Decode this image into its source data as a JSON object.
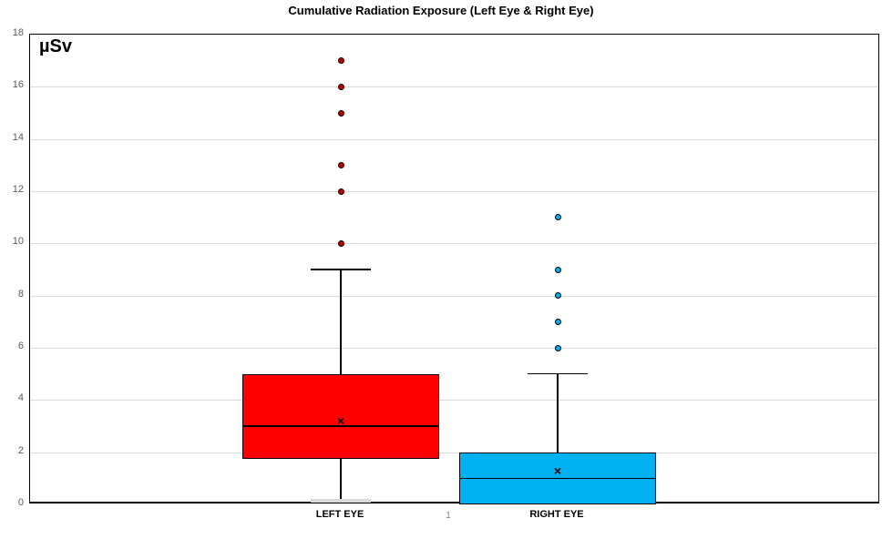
{
  "chart_data": {
    "type": "boxplot",
    "title": "Cumulative Radiation Exposure (Left Eye & Right Eye)",
    "unit_label": "µSv",
    "axis_group_label": "1",
    "ylim": [
      0,
      18
    ],
    "ytick_step": 2,
    "yticks": [
      0,
      2,
      4,
      6,
      8,
      10,
      12,
      14,
      16,
      18
    ],
    "grid": true,
    "gridline_color": "#d9d9d9",
    "tick_label_color": "#595959",
    "mean_marker_symbol": "×",
    "series": [
      {
        "name": "LEFT EYE",
        "box_color": "#ff0000",
        "outlier_color": "#c00000",
        "whisker_low": 0,
        "q1": 1.75,
        "median": 3,
        "q3": 5,
        "whisker_high": 9,
        "mean": 3.2,
        "outliers": [
          10,
          12,
          13,
          15,
          16,
          17
        ]
      },
      {
        "name": "RIGHT EYE",
        "box_color": "#00b0f0",
        "outlier_color": "#00b0f0",
        "whisker_low": 0,
        "q1": 0,
        "median": 1,
        "q3": 2,
        "whisker_high": 5,
        "mean": 1.3,
        "outliers": [
          6,
          7,
          8,
          9,
          11
        ]
      }
    ]
  }
}
